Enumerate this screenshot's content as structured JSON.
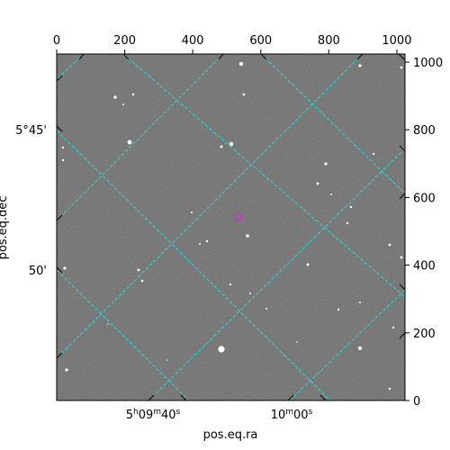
{
  "image": {
    "description_kind": "astronomical-grayscale-fits-cutout",
    "marker_color": "#cc33cc",
    "grid_color": "#22dddd",
    "background_gray": "#6e6e6e"
  },
  "pixel_axes": {
    "x_ticks": [
      "0",
      "200",
      "400",
      "600",
      "800",
      "1000"
    ],
    "y_ticks": [
      "0",
      "200",
      "400",
      "600",
      "800",
      "1000"
    ]
  },
  "world_axes": {
    "xlabel": "pos.eq.ra",
    "ylabel": "pos.eq.dec",
    "ra_ticks": [
      {
        "label_html": "5<tspan baseline-shift='super' font-size='9'>h</tspan>09<tspan baseline-shift='super' font-size='9'>m</tspan>40<tspan baseline-shift='super' font-size='9'>s</tspan>",
        "text": "5h09m40s"
      },
      {
        "label_html": "10<tspan baseline-shift='super' font-size='9'>m</tspan>00<tspan baseline-shift='super' font-size='9'>s</tspan>",
        "text": "10m00s"
      }
    ],
    "dec_ticks": [
      "5°45'",
      "50'"
    ]
  }
}
